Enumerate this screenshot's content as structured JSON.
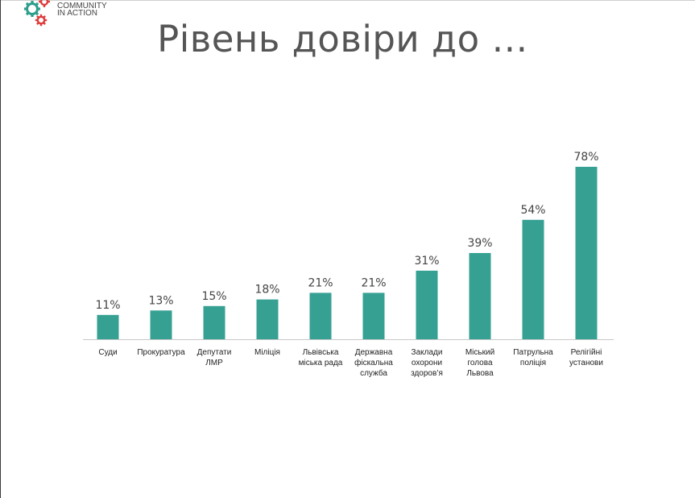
{
  "logo": {
    "line1": "COMMUNITY",
    "line2": "IN ACTION"
  },
  "title": "Рівень довіри до …",
  "colors": {
    "bar": "#36a193",
    "axis": "#c8c8c8",
    "title": "#555555"
  },
  "chart_data": {
    "type": "bar",
    "title": "Рівень довіри до …",
    "xlabel": "",
    "ylabel": "",
    "ylim": [
      0,
      100
    ],
    "grid": false,
    "categories": [
      [
        "Суди"
      ],
      [
        "Прокуратура"
      ],
      [
        "Депутати",
        "ЛМР"
      ],
      [
        "Міліція"
      ],
      [
        "Львівська",
        "міська рада"
      ],
      [
        "Державна",
        "фіскальна",
        "служба"
      ],
      [
        "Заклади",
        "охорони",
        "здоров’я"
      ],
      [
        "Міський",
        "голова",
        "Львова"
      ],
      [
        "Патрульна",
        "поліція"
      ],
      [
        "Релігійні",
        "установи"
      ]
    ],
    "values": [
      11,
      13,
      15,
      18,
      21,
      21,
      31,
      39,
      54,
      78
    ],
    "value_labels": [
      "11%",
      "13%",
      "15%",
      "18%",
      "21%",
      "21%",
      "31%",
      "39%",
      "54%",
      "78%"
    ]
  }
}
